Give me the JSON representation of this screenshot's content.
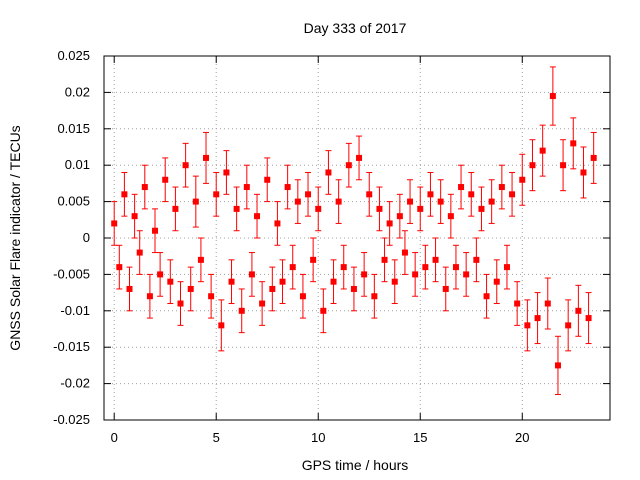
{
  "chart_data": {
    "type": "scatter",
    "title": "Day 333 of 2017",
    "xlabel": "GPS time / hours",
    "ylabel": "GNSS Solar Flare indicator / TECUs",
    "xlim": [
      -0.5,
      24.3
    ],
    "ylim": [
      -0.025,
      0.025
    ],
    "x_ticks": [
      0,
      5,
      10,
      15,
      20
    ],
    "y_ticks": [
      -0.025,
      -0.02,
      -0.015,
      -0.01,
      -0.005,
      0,
      0.005,
      0.01,
      0.015,
      0.02,
      0.025
    ],
    "x_tick_labels": [
      "0",
      "5",
      "10",
      "15",
      "20"
    ],
    "y_tick_labels": [
      "-0.025",
      "-0.02",
      "-0.015",
      "-0.01",
      "-0.005",
      "0",
      "0.005",
      "0.01",
      "0.015",
      "0.02",
      "0.025"
    ],
    "grid": true,
    "legend": "none",
    "marker": "filled-square",
    "error_bars": true,
    "series_color": "#ff0000",
    "series": [
      {
        "x": [
          0.0,
          0.25,
          0.5,
          0.75,
          1.0,
          1.25,
          1.5,
          1.75,
          2.0,
          2.25,
          2.5,
          2.75,
          3.0,
          3.25,
          3.5,
          3.75,
          4.0,
          4.25,
          4.5,
          4.75,
          5.0,
          5.25,
          5.5,
          5.75,
          6.0,
          6.25,
          6.5,
          6.75,
          7.0,
          7.25,
          7.5,
          7.75,
          8.0,
          8.25,
          8.5,
          8.75,
          9.0,
          9.25,
          9.5,
          9.75,
          10.0,
          10.25,
          10.5,
          10.75,
          11.0,
          11.25,
          11.5,
          11.75,
          12.0,
          12.25,
          12.5,
          12.75,
          13.0,
          13.25,
          13.5,
          13.75,
          14.0,
          14.25,
          14.5,
          14.75,
          15.0,
          15.25,
          15.5,
          15.75,
          16.0,
          16.25,
          16.5,
          16.75,
          17.0,
          17.25,
          17.5,
          17.75,
          18.0,
          18.25,
          18.5,
          18.75,
          19.0,
          19.25,
          19.5,
          19.75,
          20.0,
          20.25,
          20.5,
          20.75,
          21.0,
          21.25,
          21.5,
          21.75,
          22.0,
          22.25,
          22.5,
          22.75,
          23.0,
          23.25,
          23.5
        ],
        "y": [
          0.002,
          -0.004,
          0.006,
          -0.007,
          0.003,
          -0.002,
          0.007,
          -0.008,
          0.001,
          -0.005,
          0.008,
          -0.006,
          0.004,
          -0.009,
          0.01,
          -0.007,
          0.005,
          -0.003,
          0.011,
          -0.008,
          0.006,
          -0.012,
          0.009,
          -0.006,
          0.004,
          -0.01,
          0.007,
          -0.005,
          0.003,
          -0.009,
          0.008,
          -0.007,
          0.002,
          -0.006,
          0.007,
          -0.004,
          0.005,
          -0.008,
          0.006,
          -0.003,
          0.004,
          -0.01,
          0.009,
          -0.006,
          0.005,
          -0.004,
          0.01,
          -0.007,
          0.011,
          -0.005,
          0.006,
          -0.008,
          0.004,
          -0.003,
          0.002,
          -0.006,
          0.003,
          -0.002,
          0.005,
          -0.005,
          0.004,
          -0.004,
          0.006,
          -0.003,
          0.005,
          -0.007,
          0.003,
          -0.004,
          0.007,
          -0.005,
          0.006,
          -0.003,
          0.004,
          -0.008,
          0.005,
          -0.006,
          0.007,
          -0.004,
          0.006,
          -0.009,
          0.008,
          -0.012,
          0.01,
          -0.011,
          0.012,
          -0.009,
          0.0195,
          -0.0175,
          0.01,
          -0.012,
          0.013,
          -0.01,
          0.009,
          -0.011,
          0.011
        ],
        "err": [
          0.003,
          0.003,
          0.003,
          0.003,
          0.003,
          0.003,
          0.003,
          0.003,
          0.003,
          0.003,
          0.003,
          0.003,
          0.003,
          0.003,
          0.003,
          0.003,
          0.0035,
          0.003,
          0.0035,
          0.003,
          0.003,
          0.0035,
          0.003,
          0.003,
          0.003,
          0.003,
          0.003,
          0.003,
          0.003,
          0.003,
          0.003,
          0.003,
          0.003,
          0.003,
          0.003,
          0.003,
          0.003,
          0.003,
          0.003,
          0.003,
          0.003,
          0.003,
          0.003,
          0.003,
          0.003,
          0.003,
          0.003,
          0.003,
          0.003,
          0.003,
          0.003,
          0.003,
          0.003,
          0.003,
          0.003,
          0.003,
          0.003,
          0.003,
          0.003,
          0.003,
          0.003,
          0.003,
          0.003,
          0.003,
          0.003,
          0.003,
          0.003,
          0.003,
          0.003,
          0.003,
          0.003,
          0.003,
          0.003,
          0.003,
          0.003,
          0.003,
          0.003,
          0.003,
          0.003,
          0.003,
          0.0035,
          0.0035,
          0.0035,
          0.0035,
          0.0035,
          0.0035,
          0.004,
          0.004,
          0.0035,
          0.0035,
          0.0035,
          0.0035,
          0.0035,
          0.0035,
          0.0035
        ]
      }
    ]
  }
}
